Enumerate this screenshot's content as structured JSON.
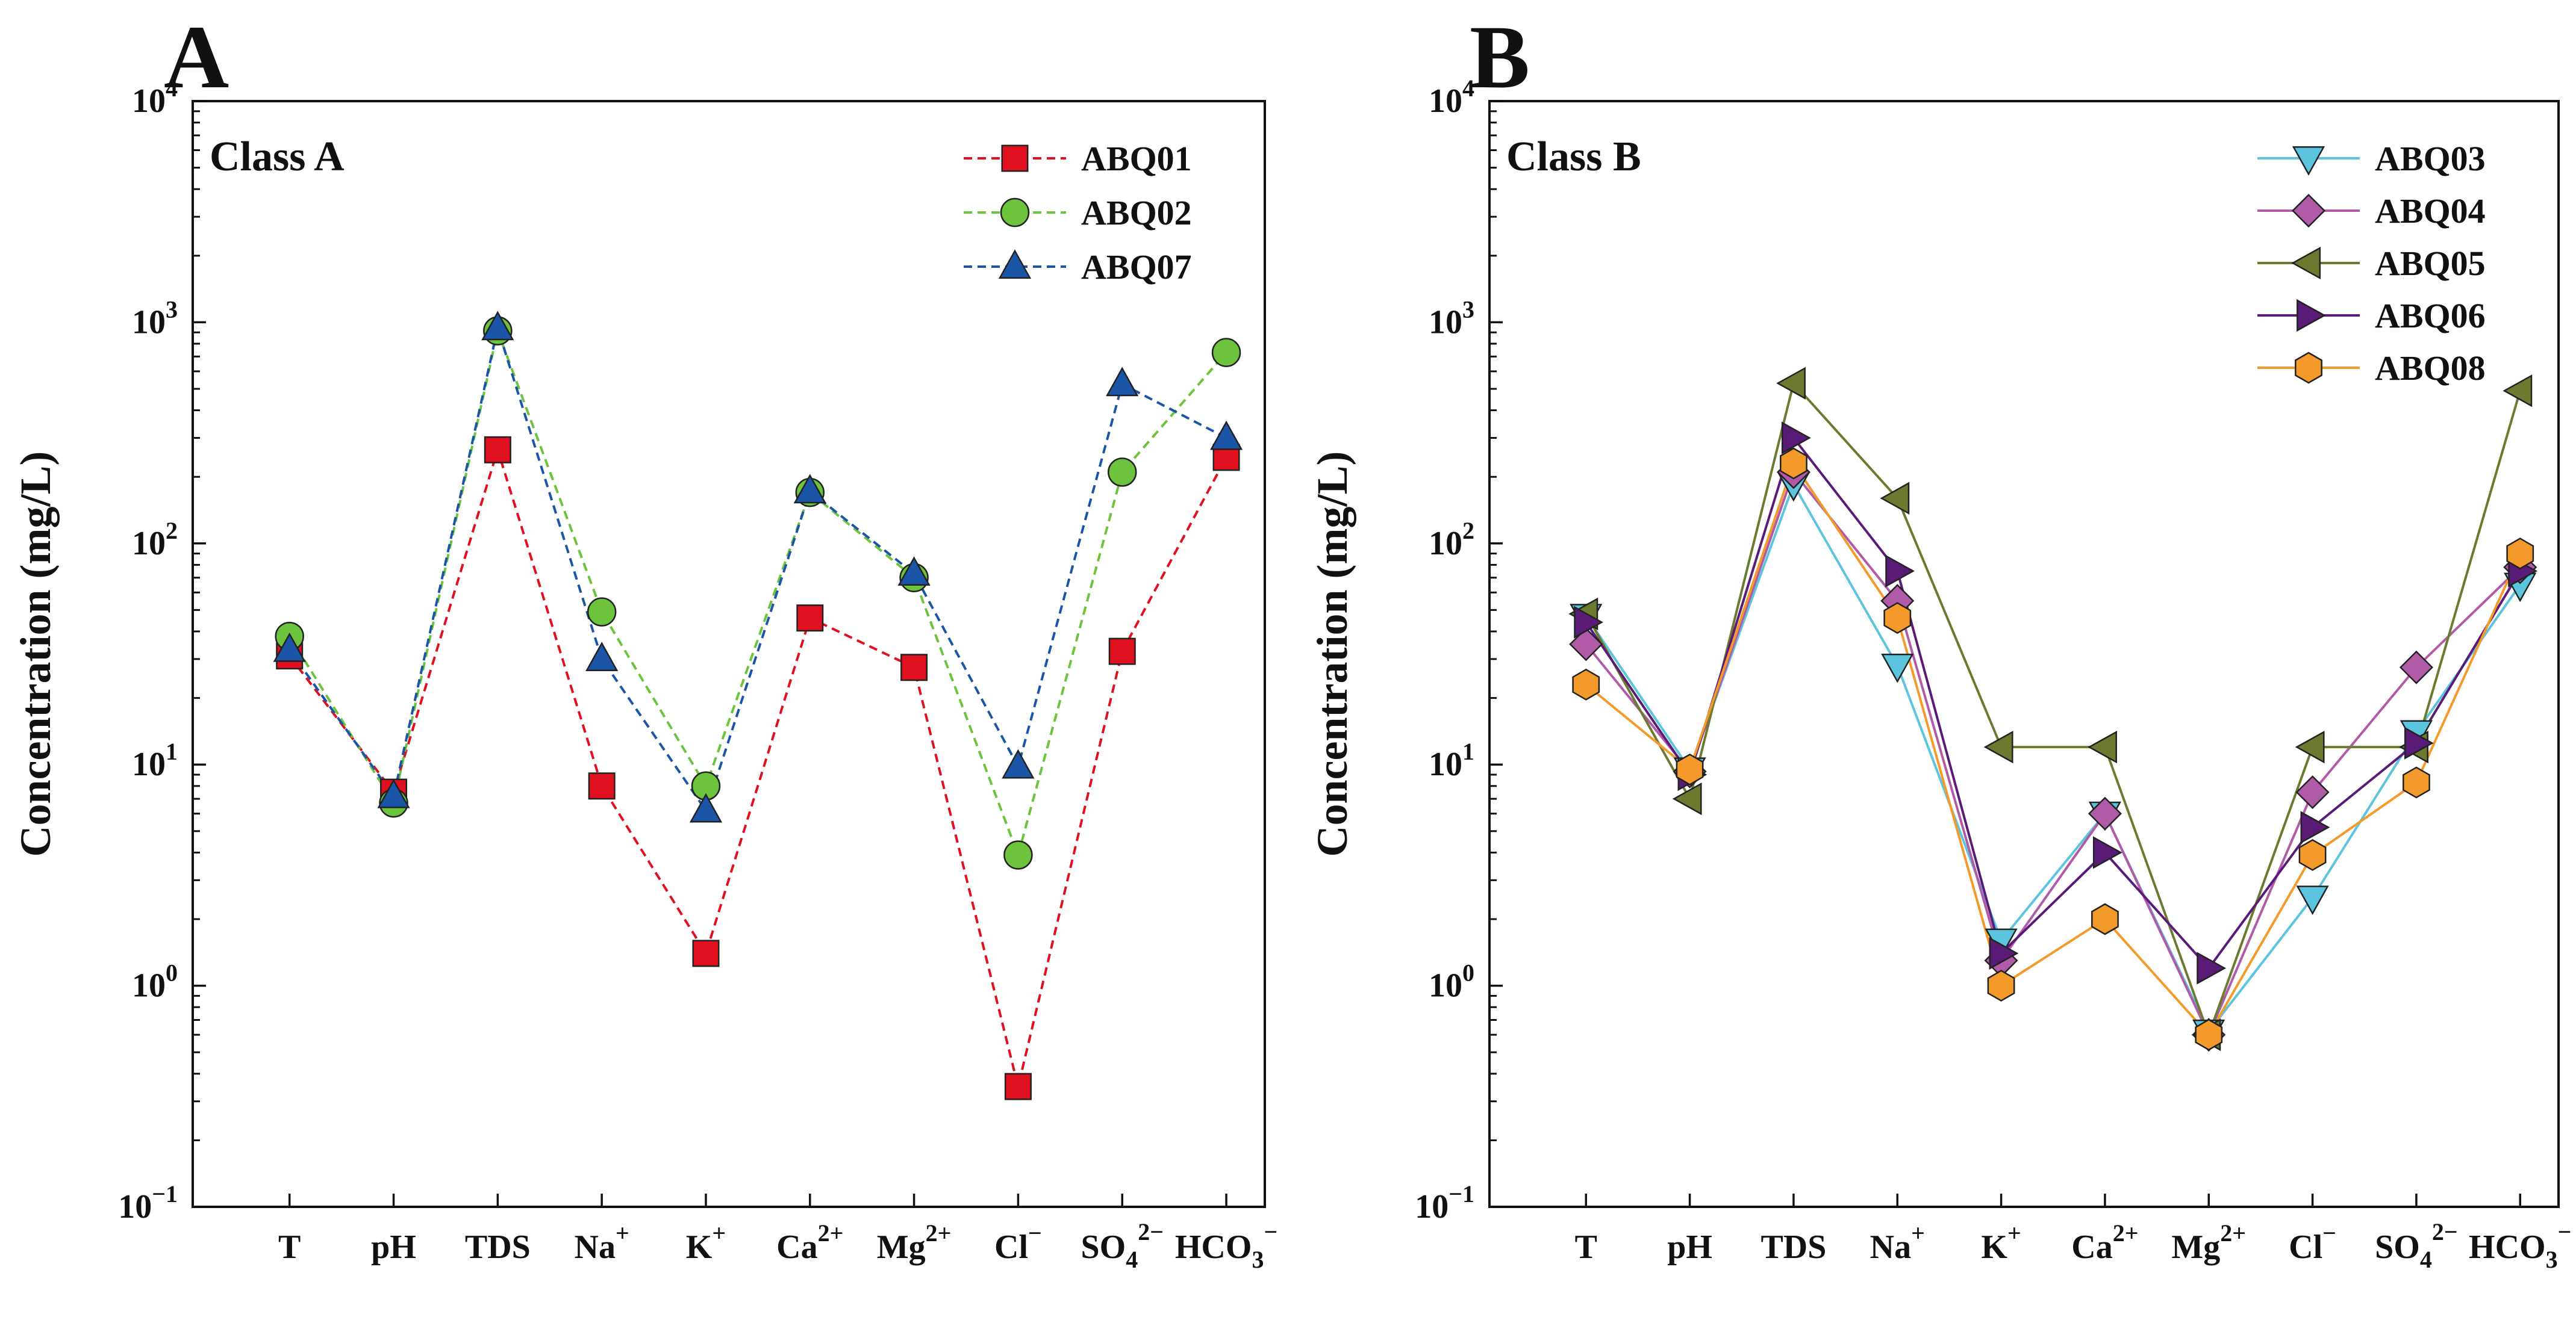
{
  "chart_data": [
    {
      "panel": "A",
      "type": "line",
      "title": "Class A",
      "xlabel": "",
      "ylabel": "Concentration (mg/L)",
      "yscale": "log",
      "ylim": [
        0.1,
        10000
      ],
      "yticks": [
        {
          "value": 0.1,
          "base": "10",
          "exp": "−1"
        },
        {
          "value": 1,
          "base": "10",
          "exp": "0"
        },
        {
          "value": 10,
          "base": "10",
          "exp": "1"
        },
        {
          "value": 100,
          "base": "10",
          "exp": "2"
        },
        {
          "value": 1000,
          "base": "10",
          "exp": "3"
        },
        {
          "value": 10000,
          "base": "10",
          "exp": "4"
        }
      ],
      "categories": [
        {
          "base": "T",
          "sub": "",
          "sup": ""
        },
        {
          "base": "pH",
          "sub": "",
          "sup": ""
        },
        {
          "base": "TDS",
          "sub": "",
          "sup": ""
        },
        {
          "base": "Na",
          "sub": "",
          "sup": "+"
        },
        {
          "base": "K",
          "sub": "",
          "sup": "+"
        },
        {
          "base": "Ca",
          "sub": "",
          "sup": "2+"
        },
        {
          "base": "Mg",
          "sub": "",
          "sup": "2+"
        },
        {
          "base": "Cl",
          "sub": "",
          "sup": "−"
        },
        {
          "base": "SO",
          "sub": "4",
          "sup": "2−"
        },
        {
          "base": "HCO",
          "sub": "3",
          "sup": "−"
        }
      ],
      "line_style": "dashed",
      "legend_position": "top-right",
      "series": [
        {
          "name": "ABQ01",
          "color": "#e0101e",
          "marker": "square",
          "values": [
            31,
            7.5,
            265,
            8,
            1.4,
            46,
            27.5,
            0.35,
            32.5,
            245
          ]
        },
        {
          "name": "ABQ02",
          "color": "#6cc33c",
          "marker": "circle",
          "values": [
            38,
            6.7,
            915,
            49,
            8,
            170,
            70,
            3.9,
            210,
            730
          ]
        },
        {
          "name": "ABQ07",
          "color": "#1a55a8",
          "marker": "triangle-up",
          "values": [
            33,
            7.2,
            940,
            30,
            6.2,
            172,
            73,
            9.8,
            525,
            300
          ]
        }
      ]
    },
    {
      "panel": "B",
      "type": "line",
      "title": "Class B",
      "xlabel": "",
      "ylabel": "Concentration (mg/L)",
      "yscale": "log",
      "ylim": [
        0.1,
        10000
      ],
      "yticks": [
        {
          "value": 0.1,
          "base": "10",
          "exp": "−1"
        },
        {
          "value": 1,
          "base": "10",
          "exp": "0"
        },
        {
          "value": 10,
          "base": "10",
          "exp": "1"
        },
        {
          "value": 100,
          "base": "10",
          "exp": "2"
        },
        {
          "value": 1000,
          "base": "10",
          "exp": "3"
        },
        {
          "value": 10000,
          "base": "10",
          "exp": "4"
        }
      ],
      "categories": [
        {
          "base": "T",
          "sub": "",
          "sup": ""
        },
        {
          "base": "pH",
          "sub": "",
          "sup": ""
        },
        {
          "base": "TDS",
          "sub": "",
          "sup": ""
        },
        {
          "base": "Na",
          "sub": "",
          "sup": "+"
        },
        {
          "base": "K",
          "sub": "",
          "sup": "+"
        },
        {
          "base": "Ca",
          "sub": "",
          "sup": "2+"
        },
        {
          "base": "Mg",
          "sub": "",
          "sup": "2+"
        },
        {
          "base": "Cl",
          "sub": "",
          "sup": "−"
        },
        {
          "base": "SO",
          "sub": "4",
          "sup": "2−"
        },
        {
          "base": "HCO",
          "sub": "3",
          "sup": "−"
        }
      ],
      "line_style": "solid",
      "legend_position": "top-right",
      "series": [
        {
          "name": "ABQ03",
          "color": "#5bc4de",
          "marker": "triangle-down",
          "values": [
            47,
            9.5,
            185,
            28,
            1.6,
            6,
            0.62,
            2.5,
            14,
            65
          ]
        },
        {
          "name": "ABQ04",
          "color": "#b05aa8",
          "marker": "diamond",
          "values": [
            35,
            9.3,
            210,
            55,
            1.3,
            6,
            0.6,
            7.5,
            27.5,
            78
          ]
        },
        {
          "name": "ABQ05",
          "color": "#6b7a2e",
          "marker": "triangle-left",
          "values": [
            48,
            7,
            530,
            160,
            12,
            12,
            0.6,
            12,
            12,
            490
          ]
        },
        {
          "name": "ABQ06",
          "color": "#5a1a78",
          "marker": "triangle-right",
          "values": [
            44,
            9,
            300,
            75,
            1.4,
            4,
            1.2,
            5.2,
            12.5,
            75
          ]
        },
        {
          "name": "ABQ08",
          "color": "#f39a2a",
          "marker": "hexagon",
          "values": [
            23,
            9.5,
            230,
            46,
            1,
            2,
            0.6,
            3.9,
            8.3,
            90
          ]
        }
      ]
    }
  ]
}
